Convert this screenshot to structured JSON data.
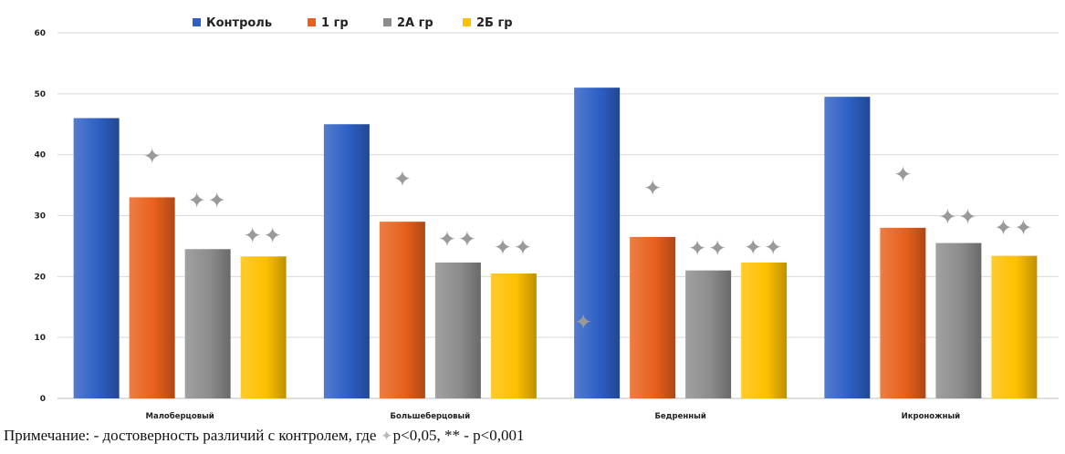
{
  "chart_data": {
    "type": "bar",
    "title": "",
    "xlabel": "",
    "ylabel": "",
    "ylim": [
      0,
      60
    ],
    "yticks": [
      0,
      10,
      20,
      30,
      40,
      50,
      60
    ],
    "grid": true,
    "legend_position": "top",
    "categories": [
      "Малоберцовый",
      "Большеберцовый",
      "Бедренный",
      "Икроножный"
    ],
    "series": [
      {
        "name": "Контроль",
        "color": "#2d5fc4",
        "values": [
          46,
          45,
          51,
          49.5
        ]
      },
      {
        "name": "1 гр",
        "color": "#e8601c",
        "values": [
          33,
          29,
          26.5,
          28
        ]
      },
      {
        "name": "2А гр",
        "color": "#8c8c8c",
        "values": [
          24.5,
          22.3,
          21,
          25.5
        ]
      },
      {
        "name": "2Б гр",
        "color": "#ffc000",
        "values": [
          23.3,
          20.5,
          22.3,
          23.4
        ]
      }
    ],
    "significance_markers": [
      {
        "category": "Малоберцовый",
        "series": "1 гр",
        "symbol": "✦",
        "count": 1,
        "y": 39.7
      },
      {
        "category": "Малоберцовый",
        "series": "2А гр",
        "symbol": "✦",
        "count": 2,
        "y": 32.5
      },
      {
        "category": "Малоберцовый",
        "series": "2Б гр",
        "symbol": "✦",
        "count": 2,
        "y": 26.7
      },
      {
        "category": "Большеберцовый",
        "series": "1 гр",
        "symbol": "✦",
        "count": 1,
        "y": 36
      },
      {
        "category": "Большеберцовый",
        "series": "2А гр",
        "symbol": "✦",
        "count": 2,
        "y": 26.1
      },
      {
        "category": "Большеберцовый",
        "series": "2Б гр",
        "symbol": "✦",
        "count": 2,
        "y": 24.8
      },
      {
        "category": "Бедренный",
        "series": "Контроль",
        "symbol": "✦",
        "count": 1,
        "y": 12.5
      },
      {
        "category": "Бедренный",
        "series": "1 гр",
        "symbol": "✦",
        "count": 1,
        "y": 34.5
      },
      {
        "category": "Бедренный",
        "series": "2А гр",
        "symbol": "✦",
        "count": 2,
        "y": 24.6
      },
      {
        "category": "Бедренный",
        "series": "2Б гр",
        "symbol": "✦",
        "count": 2,
        "y": 24.8
      },
      {
        "category": "Икроножный",
        "series": "1 гр",
        "symbol": "✦",
        "count": 1,
        "y": 36.7
      },
      {
        "category": "Икроножный",
        "series": "2А гр",
        "symbol": "✦",
        "count": 2,
        "y": 29.8
      },
      {
        "category": "Икроножный",
        "series": "2Б гр",
        "symbol": "✦",
        "count": 2,
        "y": 28
      }
    ]
  },
  "note": {
    "prefix": "Примечание:  - достоверность различий с контролем, где ",
    "symbol": "✦",
    "suffix": "p<0,05, ** - p<0,001"
  }
}
